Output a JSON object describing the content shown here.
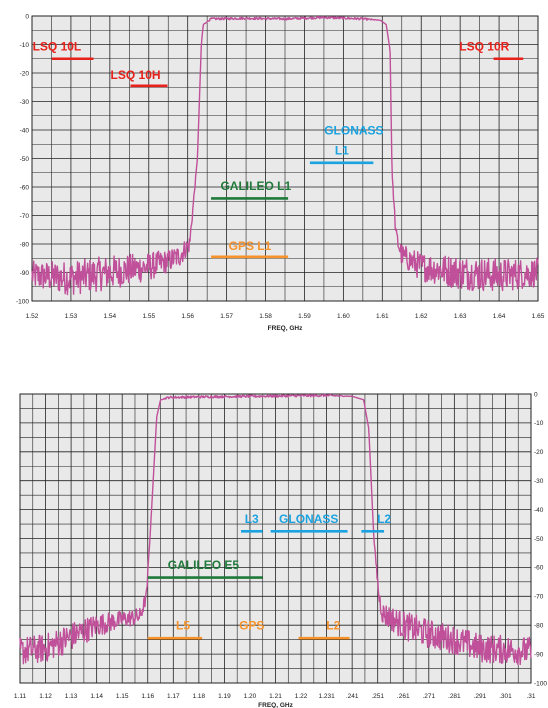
{
  "colors": {
    "trace": "#c0509a",
    "grid": "#222222",
    "plot_bg": "#e9e9e9",
    "red": "#e8211b",
    "green": "#1f7a3a",
    "blue": "#1aa3e0",
    "orange": "#f7932b"
  },
  "chart_data": [
    {
      "type": "line",
      "xlabel": "FREQ, GHz",
      "ylabel": "",
      "x_ticks": [
        "1.52",
        "1.53",
        "1.54",
        "1.55",
        "1.56",
        "1.57",
        "1.58",
        "1.59",
        "1.60",
        "1.61",
        "1.62",
        "1.63",
        "1.64",
        "1.65"
      ],
      "y_ticks": [
        "0",
        "-10",
        "-20",
        "-30",
        "-40",
        "-50",
        "-60",
        "-70",
        "-80",
        "-90",
        "-100"
      ],
      "xlim": [
        1.52,
        1.65
      ],
      "ylim": [
        -100,
        0
      ],
      "y_axis_side": "left",
      "grid": true,
      "series": [
        {
          "x": [
            1.52,
            1.53,
            1.54,
            1.55,
            1.555,
            1.558,
            1.5605,
            1.5625,
            1.5635,
            1.564,
            1.566,
            1.575,
            1.585,
            1.595,
            1.605,
            1.6095,
            1.611,
            1.612,
            1.6125,
            1.6135,
            1.615,
            1.62,
            1.63,
            1.64,
            1.65
          ],
          "values": [
            -91,
            -92,
            -90,
            -88,
            -86,
            -84,
            -80,
            -50,
            -10,
            -3,
            -1,
            -0.8,
            -1,
            -0.5,
            -1,
            -1.5,
            -3,
            -12,
            -55,
            -77,
            -84,
            -88,
            -90,
            -91,
            -90
          ],
          "noise": [
            5,
            6,
            6,
            5,
            4,
            4,
            3,
            0,
            0,
            0,
            0.4,
            0.4,
            0.4,
            0.4,
            0.4,
            0,
            0,
            0,
            0,
            3,
            4,
            5,
            6,
            6,
            5
          ]
        }
      ],
      "annotations": [
        {
          "text": "LSQ 10L",
          "color": "red",
          "x": 1.5264,
          "y": -10.5,
          "lx": [
            1.5251,
            1.5358
          ],
          "ly": -15
        },
        {
          "text": "LSQ 10H",
          "color": "red",
          "x": 1.5466,
          "y": -20.5,
          "lx": [
            1.5453,
            1.5548
          ],
          "ly": -24.5
        },
        {
          "text": "LSQ 10R",
          "color": "red",
          "x": 1.6362,
          "y": -10.5,
          "lx": [
            1.6386,
            1.6462
          ],
          "ly": -15
        },
        {
          "text": "GLONASS",
          "color": "blue",
          "x": 1.6027,
          "y": -40,
          "lx": [
            1.5914,
            1.6077
          ],
          "ly": -51.5
        },
        {
          "text": "L1",
          "color": "blue",
          "x": 1.5996,
          "y": -47,
          "lx": null,
          "ly": null
        },
        {
          "text": "GALILEO L1",
          "color": "green",
          "x": 1.5775,
          "y": -59.5,
          "lx": [
            1.566,
            1.5858
          ],
          "ly": -64
        },
        {
          "text": "GPS L1",
          "color": "orange",
          "x": 1.576,
          "y": -80.5,
          "lx": [
            1.566,
            1.5858
          ],
          "ly": -84.5
        }
      ]
    },
    {
      "type": "line",
      "xlabel": "FREQ, GHz",
      "ylabel": "",
      "x_ticks": [
        "1.11",
        "1.12",
        "1.13",
        "1.14",
        "1.15",
        "1.16",
        "1.17",
        "1.18",
        "1.19",
        "1.20",
        "1.21",
        "1.22",
        "1.231",
        ".241",
        ".251",
        ".261",
        ".271",
        ".281",
        ".291",
        ".301",
        ".31"
      ],
      "y_ticks": [
        "0",
        "-10",
        "-20",
        "-30",
        "-40",
        "-50",
        "-60",
        "-70",
        "-80",
        "-90",
        "-100"
      ],
      "xlim": [
        1.11,
        1.31
      ],
      "ylim": [
        -100,
        0
      ],
      "y_axis_side": "right",
      "grid": true,
      "series": [
        {
          "x": [
            1.11,
            1.12,
            1.13,
            1.14,
            1.15,
            1.157,
            1.1595,
            1.1615,
            1.1635,
            1.165,
            1.168,
            1.18,
            1.2,
            1.22,
            1.23,
            1.24,
            1.2445,
            1.2465,
            1.2485,
            1.2505,
            1.252,
            1.26,
            1.27,
            1.28,
            1.29,
            1.31
          ],
          "values": [
            -89,
            -88,
            -84,
            -80,
            -78,
            -77,
            -70,
            -40,
            -8,
            -2,
            -1.2,
            -1,
            -0.8,
            -0.6,
            -0.5,
            -0.8,
            -2,
            -12,
            -50,
            -70,
            -76,
            -80,
            -83,
            -85,
            -88,
            -89
          ],
          "noise": [
            5,
            5,
            5,
            4,
            3,
            3,
            2,
            0,
            0,
            0,
            0.4,
            0.4,
            0.4,
            0.4,
            0.4,
            0,
            0,
            0,
            0,
            3,
            4,
            5,
            5,
            5,
            5,
            5
          ]
        }
      ],
      "annotations": [
        {
          "text": "L3",
          "color": "blue",
          "x": 1.2007,
          "y": -43,
          "lx": [
            1.1965,
            1.205
          ],
          "ly": -47.5
        },
        {
          "text": "GLONASS",
          "color": "blue",
          "x": 1.223,
          "y": -43,
          "lx": [
            1.2081,
            1.2382
          ],
          "ly": -47.5
        },
        {
          "text": "L2",
          "color": "blue",
          "x": 1.2525,
          "y": -43,
          "lx": [
            1.2436,
            1.2525
          ],
          "ly": -47.5
        },
        {
          "text": "GALILEO  E5",
          "color": "green",
          "x": 1.1818,
          "y": -59,
          "lx": [
            1.16,
            1.205
          ],
          "ly": -63.5
        },
        {
          "text": "L5",
          "color": "orange",
          "x": 1.1738,
          "y": -80,
          "lx": [
            1.16,
            1.1813
          ],
          "ly": -84.5
        },
        {
          "text": "GPS",
          "color": "orange",
          "x": 1.2007,
          "y": -80,
          "lx": null,
          "ly": null
        },
        {
          "text": "L2",
          "color": "orange",
          "x": 1.2326,
          "y": -80,
          "lx": [
            1.219,
            1.239
          ],
          "ly": -84.5
        }
      ]
    }
  ]
}
